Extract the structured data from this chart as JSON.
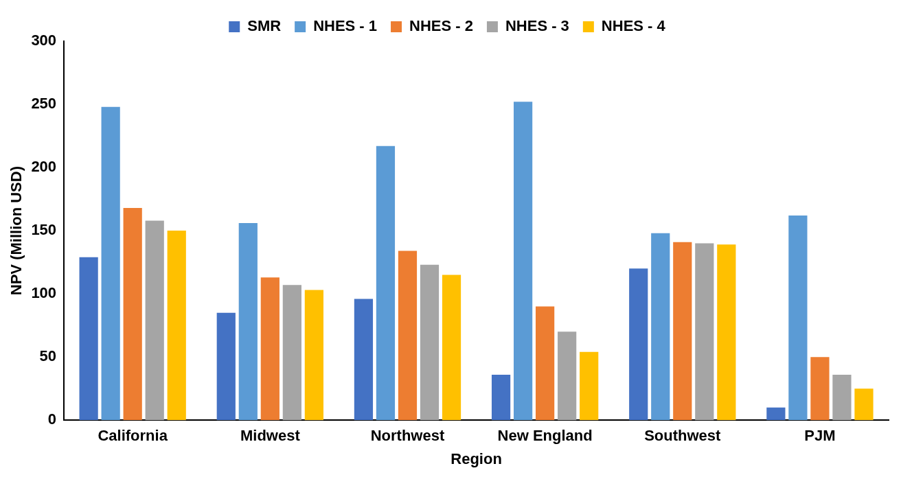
{
  "chart_data": {
    "type": "bar",
    "xlabel": "Region",
    "ylabel": "NPV (Million USD)",
    "categories": [
      "California",
      "Midwest",
      "Northwest",
      "New England",
      "Southwest",
      "PJM"
    ],
    "series": [
      {
        "name": "SMR",
        "color": "#4472c4",
        "values": [
          129,
          85,
          96,
          36,
          120,
          10
        ]
      },
      {
        "name": "NHES - 1",
        "color": "#5b9bd5",
        "values": [
          248,
          156,
          217,
          252,
          148,
          162
        ]
      },
      {
        "name": "NHES - 2",
        "color": "#ed7d31",
        "values": [
          168,
          113,
          134,
          90,
          141,
          50
        ]
      },
      {
        "name": "NHES - 3",
        "color": "#a5a5a5",
        "values": [
          158,
          107,
          123,
          70,
          140,
          36
        ]
      },
      {
        "name": "NHES - 4",
        "color": "#ffc000",
        "values": [
          150,
          103,
          115,
          54,
          139,
          25
        ]
      }
    ],
    "ylim": [
      0,
      300
    ],
    "yticks": [
      0,
      50,
      100,
      150,
      200,
      250,
      300
    ],
    "grid": false,
    "legend": "top"
  }
}
